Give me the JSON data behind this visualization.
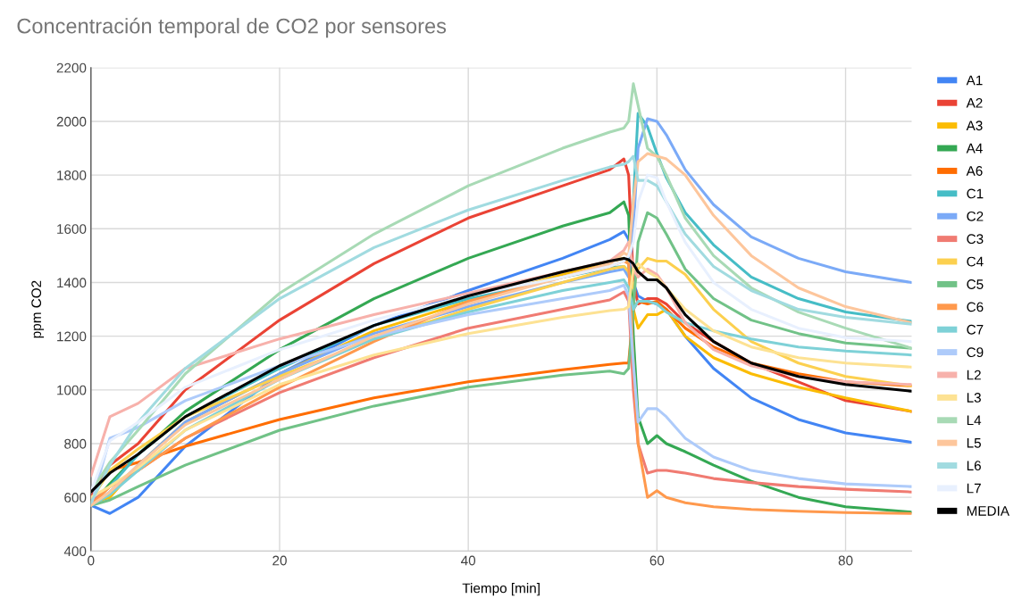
{
  "chart_data": {
    "type": "line",
    "title": "Concentración temporal de CO2 por sensores",
    "xlabel": "Tiempo [min]",
    "ylabel": "ppm CO2",
    "x": [
      0,
      2,
      5,
      10,
      20,
      30,
      40,
      50,
      55,
      56.5,
      57,
      57.5,
      58,
      59,
      60,
      61,
      63,
      66,
      70,
      75,
      80,
      87
    ],
    "xlim": [
      0,
      87
    ],
    "xticks": [
      0,
      20,
      40,
      60,
      80
    ],
    "ylim": [
      400,
      2200
    ],
    "yticks": [
      400,
      600,
      800,
      1000,
      1200,
      1400,
      1600,
      1800,
      2000,
      2200
    ],
    "grid": true,
    "legend": "right",
    "line_style": "solid",
    "series": [
      {
        "name": "A1",
        "color": "#4285f4",
        "values": [
          570,
          540,
          600,
          790,
          1060,
          1240,
          1370,
          1490,
          1560,
          1590,
          1560,
          1400,
          1350,
          1330,
          1320,
          1300,
          1200,
          1080,
          970,
          890,
          840,
          805
        ]
      },
      {
        "name": "A2",
        "color": "#ea4335",
        "values": [
          600,
          720,
          800,
          1000,
          1260,
          1470,
          1640,
          1760,
          1820,
          1860,
          1800,
          1400,
          1320,
          1340,
          1340,
          1320,
          1250,
          1180,
          1100,
          1030,
          960,
          920
        ]
      },
      {
        "name": "A3",
        "color": "#fbbc04",
        "values": [
          580,
          600,
          720,
          880,
          1060,
          1220,
          1330,
          1430,
          1480,
          1490,
          1470,
          1300,
          1230,
          1280,
          1280,
          1300,
          1200,
          1120,
          1060,
          1010,
          970,
          920
        ]
      },
      {
        "name": "A4",
        "color": "#34a853",
        "values": [
          570,
          650,
          760,
          920,
          1150,
          1340,
          1490,
          1610,
          1660,
          1700,
          1650,
          1200,
          900,
          800,
          830,
          800,
          770,
          720,
          660,
          600,
          565,
          545
        ]
      },
      {
        "name": "A6",
        "color": "#ff6d01",
        "values": [
          620,
          700,
          730,
          790,
          890,
          970,
          1030,
          1075,
          1095,
          1100,
          1100,
          1300,
          1330,
          1320,
          1330,
          1300,
          1230,
          1160,
          1100,
          1060,
          1030,
          1015
        ]
      },
      {
        "name": "C1",
        "color": "#46bdc6",
        "values": [
          580,
          640,
          760,
          900,
          1080,
          1240,
          1340,
          1420,
          1455,
          1460,
          1440,
          1700,
          2030,
          1980,
          1880,
          1790,
          1660,
          1540,
          1420,
          1340,
          1290,
          1255
        ]
      },
      {
        "name": "C2",
        "color": "#7baaf7",
        "values": [
          570,
          620,
          720,
          880,
          1060,
          1210,
          1310,
          1400,
          1440,
          1450,
          1420,
          1600,
          1900,
          2010,
          2000,
          1950,
          1820,
          1690,
          1570,
          1490,
          1440,
          1400
        ]
      },
      {
        "name": "C3",
        "color": "#f07b72",
        "values": [
          580,
          640,
          700,
          820,
          990,
          1120,
          1230,
          1300,
          1335,
          1365,
          1330,
          1000,
          800,
          690,
          700,
          700,
          690,
          670,
          655,
          640,
          630,
          620
        ]
      },
      {
        "name": "C4",
        "color": "#fcd04f",
        "values": [
          590,
          700,
          780,
          900,
          1050,
          1190,
          1300,
          1400,
          1450,
          1460,
          1440,
          1380,
          1450,
          1490,
          1480,
          1480,
          1430,
          1300,
          1180,
          1100,
          1050,
          1015
        ]
      },
      {
        "name": "C5",
        "color": "#71c287",
        "values": [
          570,
          590,
          640,
          720,
          850,
          940,
          1010,
          1055,
          1070,
          1060,
          1080,
          1300,
          1550,
          1660,
          1640,
          1580,
          1450,
          1340,
          1260,
          1210,
          1175,
          1155
        ]
      },
      {
        "name": "C6",
        "color": "#ff994d",
        "values": [
          570,
          640,
          700,
          820,
          1010,
          1180,
          1330,
          1420,
          1460,
          1480,
          1470,
          1100,
          800,
          600,
          625,
          600,
          580,
          565,
          555,
          548,
          543,
          540
        ]
      },
      {
        "name": "C7",
        "color": "#7ed1d7",
        "values": [
          570,
          610,
          700,
          850,
          1040,
          1190,
          1290,
          1370,
          1400,
          1410,
          1380,
          1300,
          1330,
          1330,
          1320,
          1290,
          1250,
          1220,
          1190,
          1160,
          1145,
          1130
        ]
      },
      {
        "name": "C9",
        "color": "#aecbfa",
        "values": [
          570,
          820,
          860,
          960,
          1090,
          1200,
          1280,
          1340,
          1370,
          1390,
          1350,
          1100,
          880,
          930,
          930,
          900,
          820,
          750,
          700,
          670,
          650,
          640
        ]
      },
      {
        "name": "L2",
        "color": "#f7b1ab",
        "values": [
          680,
          900,
          950,
          1080,
          1190,
          1280,
          1360,
          1440,
          1480,
          1520,
          1550,
          1450,
          1420,
          1450,
          1430,
          1380,
          1250,
          1150,
          1090,
          1050,
          1030,
          1020
        ]
      },
      {
        "name": "L3",
        "color": "#fde293",
        "values": [
          600,
          640,
          710,
          850,
          1020,
          1130,
          1210,
          1270,
          1295,
          1300,
          1310,
          1450,
          1470,
          1440,
          1420,
          1380,
          1300,
          1220,
          1160,
          1120,
          1100,
          1085
        ]
      },
      {
        "name": "L4",
        "color": "#a8dab5",
        "values": [
          620,
          730,
          850,
          1060,
          1360,
          1580,
          1760,
          1900,
          1960,
          1975,
          2000,
          2140,
          2060,
          1900,
          1870,
          1800,
          1640,
          1500,
          1380,
          1290,
          1230,
          1155
        ]
      },
      {
        "name": "L5",
        "color": "#fdc69c",
        "values": [
          570,
          620,
          720,
          870,
          1040,
          1200,
          1320,
          1420,
          1470,
          1510,
          1500,
          1700,
          1850,
          1880,
          1870,
          1860,
          1800,
          1650,
          1500,
          1380,
          1310,
          1250
        ]
      },
      {
        "name": "L6",
        "color": "#a1dbe0",
        "values": [
          580,
          720,
          880,
          1080,
          1340,
          1530,
          1670,
          1780,
          1830,
          1840,
          1850,
          1870,
          1780,
          1780,
          1760,
          1700,
          1580,
          1460,
          1370,
          1300,
          1270,
          1245
        ]
      },
      {
        "name": "L7",
        "color": "#e8f0fe",
        "values": [
          620,
          810,
          880,
          1010,
          1150,
          1260,
          1350,
          1420,
          1460,
          1480,
          1500,
          1550,
          1700,
          1800,
          1790,
          1700,
          1550,
          1400,
          1300,
          1230,
          1195,
          1180
        ]
      },
      {
        "name": "MEDIA",
        "color": "#000000",
        "values": [
          620,
          690,
          760,
          900,
          1090,
          1240,
          1350,
          1440,
          1480,
          1490,
          1485,
          1470,
          1440,
          1410,
          1410,
          1380,
          1280,
          1180,
          1100,
          1050,
          1020,
          995
        ]
      }
    ]
  }
}
